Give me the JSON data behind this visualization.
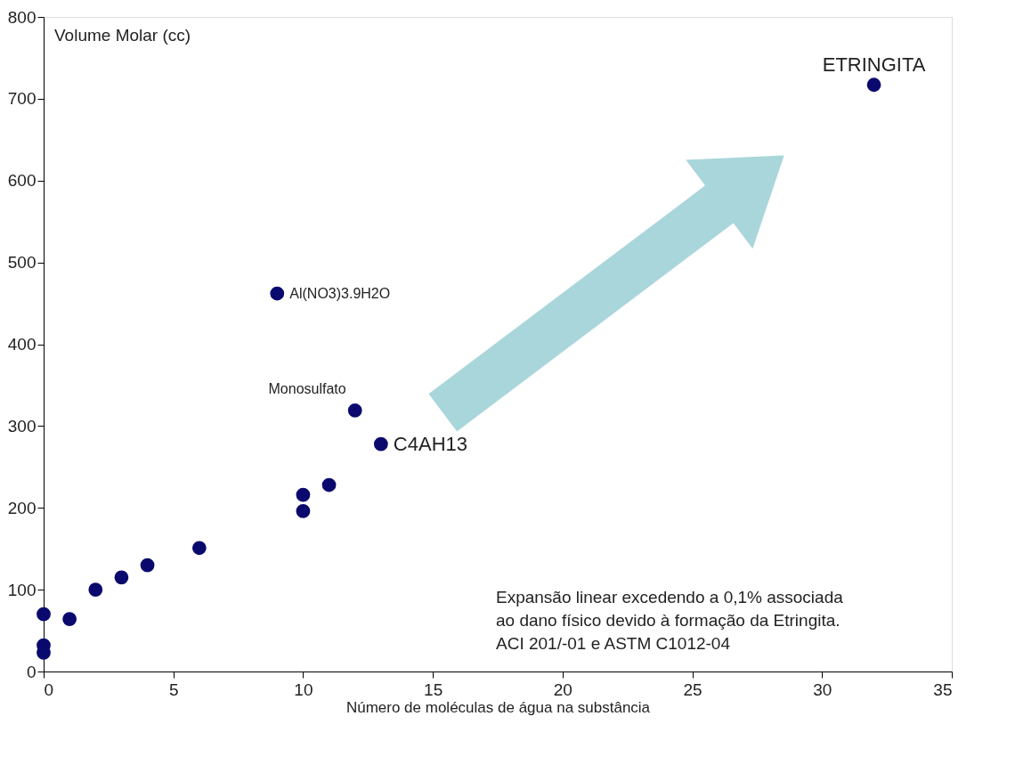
{
  "chart_data": {
    "type": "scatter",
    "xlabel": "Número de moléculas de água na substância",
    "ylabel": "Volume Molar (cc)",
    "x": [
      0,
      0,
      0,
      1,
      2,
      3,
      4,
      6,
      9,
      10,
      10,
      11,
      12,
      13,
      32
    ],
    "series": [
      {
        "color": "#0a0a6e",
        "values": [
          70,
          32,
          23,
          64,
          100,
          115,
          130,
          151,
          462,
          216,
          196,
          228,
          319,
          278,
          717
        ]
      }
    ],
    "marker": "circle",
    "xlim": [
      0,
      35
    ],
    "xticks": [
      0,
      5,
      10,
      15,
      20,
      25,
      30,
      35
    ],
    "ylim": [
      0,
      800
    ],
    "yticks": [
      0,
      100,
      200,
      300,
      400,
      500,
      600,
      700,
      800
    ],
    "grid": false,
    "annotations": [
      {
        "text": "ETRINGITA",
        "x": 32,
        "y": 717
      },
      {
        "text": "Al(NO3)3.9H2O",
        "x": 9,
        "y": 462
      },
      {
        "text": "Monosulfato",
        "x": 12,
        "y": 319
      },
      {
        "text": "C4AH13",
        "x": 13,
        "y": 278
      },
      "Expansão linear excedendo a 0,1% associada\nao dano físico devido à formação da Etringita.\nACI 201/-01 e ASTM C1012-04"
    ]
  }
}
